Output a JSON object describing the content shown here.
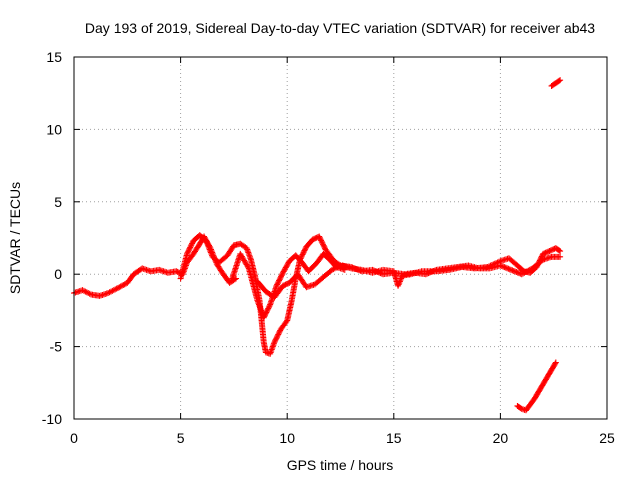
{
  "chart_data": {
    "type": "scatter",
    "title": "Day 193 of 2019, Sidereal Day-to-day VTEC variation (SDTVAR) for receiver ab43",
    "xlabel": "GPS time / hours",
    "ylabel": "SDTVAR / TECUs",
    "xlim": [
      0,
      25
    ],
    "ylim": [
      -10,
      15
    ],
    "x_ticks": [
      0,
      5,
      10,
      15,
      20,
      25
    ],
    "x_tick_labels": [
      "0",
      "5",
      "10",
      "15",
      "20",
      "25"
    ],
    "y_ticks": [
      -10,
      -5,
      0,
      5,
      10,
      15
    ],
    "y_tick_labels": [
      "-10",
      "-5",
      "0",
      "5",
      "10",
      "15"
    ],
    "grid": true,
    "marker": "plus",
    "color": "#ff0000",
    "series": [
      {
        "name": "track-a",
        "points": [
          [
            0.0,
            -1.3
          ],
          [
            0.4,
            -1.1
          ],
          [
            0.8,
            -1.4
          ],
          [
            1.2,
            -1.5
          ],
          [
            1.6,
            -1.3
          ],
          [
            2.0,
            -1.0
          ],
          [
            2.5,
            -0.6
          ],
          [
            2.8,
            0.0
          ],
          [
            3.2,
            0.4
          ],
          [
            3.6,
            0.2
          ],
          [
            4.0,
            0.3
          ],
          [
            4.4,
            0.1
          ],
          [
            4.8,
            0.2
          ],
          [
            5.1,
            0.0
          ],
          [
            5.3,
            0.8
          ],
          [
            5.6,
            1.4
          ],
          [
            5.9,
            2.1
          ],
          [
            6.1,
            2.6
          ],
          [
            6.4,
            1.8
          ],
          [
            6.7,
            0.7
          ],
          [
            7.0,
            0.0
          ],
          [
            7.3,
            -0.6
          ],
          [
            7.6,
            -0.3
          ]
        ]
      },
      {
        "name": "track-b",
        "points": [
          [
            5.0,
            -0.3
          ],
          [
            5.3,
            1.4
          ],
          [
            5.6,
            2.3
          ],
          [
            5.9,
            2.7
          ],
          [
            6.2,
            2.3
          ],
          [
            6.5,
            1.2
          ],
          [
            6.8,
            0.8
          ],
          [
            7.2,
            1.3
          ],
          [
            7.5,
            2.0
          ],
          [
            7.8,
            2.1
          ],
          [
            8.1,
            1.8
          ],
          [
            8.3,
            1.0
          ],
          [
            8.5,
            -0.2
          ],
          [
            8.7,
            -1.8
          ],
          [
            8.8,
            -3.2
          ],
          [
            8.9,
            -4.7
          ],
          [
            9.0,
            -5.4
          ],
          [
            9.2,
            -5.5
          ],
          [
            9.4,
            -4.7
          ],
          [
            9.7,
            -3.8
          ],
          [
            10.0,
            -3.2
          ],
          [
            10.2,
            -1.9
          ],
          [
            10.4,
            -0.3
          ],
          [
            10.6,
            1.0
          ],
          [
            10.9,
            1.9
          ],
          [
            11.2,
            2.4
          ],
          [
            11.5,
            2.6
          ],
          [
            11.8,
            1.7
          ],
          [
            12.2,
            0.9
          ],
          [
            12.6,
            0.5
          ]
        ]
      },
      {
        "name": "track-c",
        "points": [
          [
            7.4,
            -0.4
          ],
          [
            7.8,
            1.4
          ],
          [
            8.2,
            0.4
          ],
          [
            8.6,
            -1.8
          ],
          [
            8.9,
            -3.0
          ],
          [
            9.2,
            -2.1
          ],
          [
            9.5,
            -0.8
          ],
          [
            9.8,
            0.1
          ],
          [
            10.1,
            0.9
          ],
          [
            10.4,
            1.3
          ],
          [
            10.7,
            0.8
          ],
          [
            11.0,
            0.2
          ],
          [
            11.4,
            0.8
          ],
          [
            11.7,
            1.4
          ],
          [
            12.0,
            1.0
          ],
          [
            12.3,
            0.5
          ],
          [
            12.7,
            0.3
          ]
        ]
      },
      {
        "name": "track-d",
        "points": [
          [
            8.6,
            -0.5
          ],
          [
            9.0,
            -1.2
          ],
          [
            9.4,
            -1.6
          ],
          [
            9.8,
            -0.8
          ],
          [
            10.1,
            -0.6
          ],
          [
            10.5,
            0.0
          ],
          [
            10.9,
            -0.9
          ],
          [
            11.3,
            -0.7
          ],
          [
            11.7,
            -0.2
          ],
          [
            12.1,
            0.3
          ],
          [
            12.5,
            0.6
          ],
          [
            13.0,
            0.5
          ],
          [
            13.5,
            0.2
          ],
          [
            14.0,
            0.3
          ],
          [
            14.5,
            0.0
          ],
          [
            15.0,
            0.1
          ],
          [
            15.5,
            0.0
          ],
          [
            16.0,
            0.1
          ],
          [
            16.5,
            0.0
          ],
          [
            17.0,
            0.3
          ],
          [
            17.5,
            0.4
          ],
          [
            18.0,
            0.5
          ],
          [
            18.5,
            0.6
          ],
          [
            19.0,
            0.4
          ],
          [
            19.5,
            0.4
          ],
          [
            20.0,
            0.6
          ],
          [
            20.5,
            0.3
          ],
          [
            21.0,
            0.0
          ],
          [
            21.5,
            0.4
          ],
          [
            22.0,
            1.0
          ],
          [
            22.4,
            1.2
          ],
          [
            22.8,
            1.2
          ]
        ]
      },
      {
        "name": "track-e",
        "points": [
          [
            12.6,
            0.6
          ],
          [
            13.0,
            0.4
          ],
          [
            13.5,
            0.3
          ],
          [
            14.0,
            0.1
          ],
          [
            14.5,
            0.3
          ],
          [
            15.0,
            0.2
          ],
          [
            15.2,
            -0.8
          ],
          [
            15.4,
            -0.1
          ],
          [
            15.8,
            0.0
          ],
          [
            16.3,
            0.2
          ],
          [
            17.0,
            0.2
          ],
          [
            17.6,
            0.3
          ],
          [
            18.2,
            0.5
          ],
          [
            18.8,
            0.4
          ],
          [
            19.4,
            0.5
          ],
          [
            20.0,
            0.9
          ],
          [
            20.4,
            1.1
          ],
          [
            20.8,
            0.6
          ],
          [
            21.1,
            0.2
          ],
          [
            21.4,
            0.1
          ],
          [
            21.7,
            0.5
          ],
          [
            22.0,
            1.4
          ],
          [
            22.3,
            1.6
          ],
          [
            22.6,
            1.8
          ],
          [
            22.8,
            1.6
          ]
        ]
      },
      {
        "name": "track-f",
        "points": [
          [
            20.8,
            -9.1
          ],
          [
            21.0,
            -9.3
          ],
          [
            21.2,
            -9.4
          ],
          [
            21.4,
            -9.0
          ],
          [
            21.6,
            -8.6
          ],
          [
            21.8,
            -8.1
          ],
          [
            22.0,
            -7.6
          ],
          [
            22.2,
            -7.1
          ],
          [
            22.4,
            -6.6
          ],
          [
            22.6,
            -6.1
          ]
        ]
      },
      {
        "name": "track-g",
        "points": [
          [
            22.4,
            13.0
          ],
          [
            22.6,
            13.2
          ],
          [
            22.8,
            13.4
          ]
        ]
      }
    ]
  }
}
